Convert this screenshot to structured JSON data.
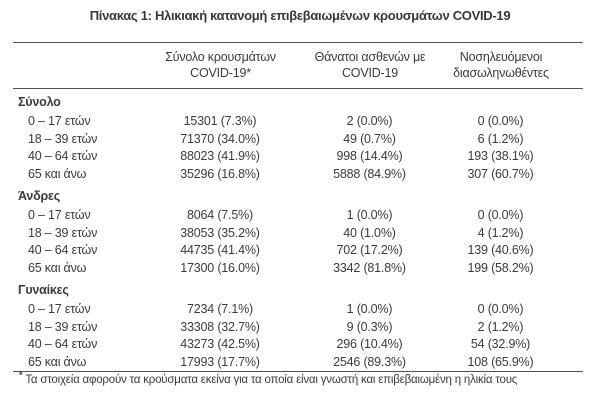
{
  "page": {
    "title": "Πίνακας 1: Ηλικιακή κατανομή επιβεβαιωμένων κρουσμάτων COVID-19"
  },
  "table": {
    "columns": [
      {
        "line1": "Σύνολο κρουσμάτων",
        "line2": "COVID-19*"
      },
      {
        "line1": "Θάνατοι ασθενών με",
        "line2": "COVID-19"
      },
      {
        "line1": "Νοσηλευόμενοι",
        "line2": "διασωληνωθέντες"
      }
    ],
    "sections": [
      {
        "label": "Σύνολο",
        "rows": [
          {
            "age": "0 – 17 ετών",
            "cases": "15301 (7.3%)",
            "deaths": "2 (0.0%)",
            "intubated": "0 (0.0%)"
          },
          {
            "age": "18 – 39 ετών",
            "cases": "71370 (34.0%)",
            "deaths": "49 (0.7%)",
            "intubated": "6 (1.2%)"
          },
          {
            "age": "40 – 64 ετών",
            "cases": "88023 (41.9%)",
            "deaths": "998 (14.4%)",
            "intubated": "193 (38.1%)"
          },
          {
            "age": "65 και άνω",
            "cases": "35296 (16.8%)",
            "deaths": "5888 (84.9%)",
            "intubated": "307 (60.7%)"
          }
        ]
      },
      {
        "label": "Άνδρες",
        "rows": [
          {
            "age": "0 – 17 ετών",
            "cases": "8064 (7.5%)",
            "deaths": "1 (0.0%)",
            "intubated": "0 (0.0%)"
          },
          {
            "age": "18 – 39 ετών",
            "cases": "38053 (35.2%)",
            "deaths": "40 (1.0%)",
            "intubated": "4 (1.2%)"
          },
          {
            "age": "40 – 64 ετών",
            "cases": "44735 (41.4%)",
            "deaths": "702 (17.2%)",
            "intubated": "139 (40.6%)"
          },
          {
            "age": "65 και άνω",
            "cases": "17300 (16.0%)",
            "deaths": "3342 (81.8%)",
            "intubated": "199 (58.2%)"
          }
        ]
      },
      {
        "label": "Γυναίκες",
        "rows": [
          {
            "age": "0 – 17 ετών",
            "cases": "7234 (7.1%)",
            "deaths": "1 (0.0%)",
            "intubated": "0 (0.0%)"
          },
          {
            "age": "18 – 39 ετών",
            "cases": "33308 (32.7%)",
            "deaths": "9 (0.3%)",
            "intubated": "2 (1.2%)"
          },
          {
            "age": "40 – 64 ετών",
            "cases": "43273 (42.5%)",
            "deaths": "296 (10.4%)",
            "intubated": "54 (32.9%)"
          },
          {
            "age": "65 και άνω",
            "cases": "17993 (17.7%)",
            "deaths": "2546 (89.3%)",
            "intubated": "108 (65.9%)"
          }
        ]
      }
    ]
  },
  "footnote": {
    "marker": "*",
    "text": "Τα στοιχεία αφορούν τα κρούσματα εκείνα για τα οποία είναι γνωστή και επιβεβαιωμένη η ηλικία τους"
  },
  "colors": {
    "text": "#3b3b3b",
    "rule_line": "#515151",
    "background": "#ffffff"
  }
}
